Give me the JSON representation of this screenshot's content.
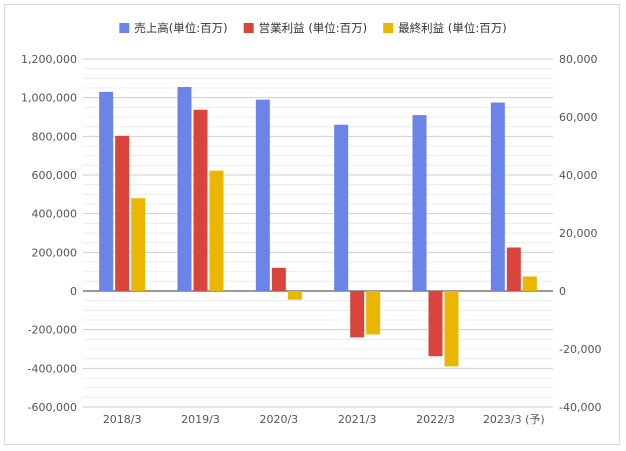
{
  "chart_data": {
    "type": "bar",
    "categories": [
      "2018/3",
      "2019/3",
      "2020/3",
      "2021/3",
      "2022/3",
      "2023/3 (予)"
    ],
    "series": [
      {
        "name": "売上高(単位:百万)",
        "axis": "left",
        "color": "#6b84e8",
        "values": [
          1030000,
          1055000,
          990000,
          860000,
          910000,
          975000
        ]
      },
      {
        "name": "営業利益 (単位:百万)",
        "axis": "right",
        "color": "#d9453d",
        "values": [
          53500,
          62500,
          8000,
          -16000,
          -22500,
          15000
        ]
      },
      {
        "name": "最終利益 (単位:百万)",
        "axis": "right",
        "color": "#e9b600",
        "values": [
          32000,
          41500,
          -3000,
          -15000,
          -26000,
          5000
        ]
      }
    ],
    "y_left": {
      "min": -600000,
      "max": 1200000,
      "ticks": [
        "1,200,000",
        "1,000,000",
        "800,000",
        "600,000",
        "400,000",
        "200,000",
        "0",
        "-200,000",
        "-400,000",
        "-600,000"
      ]
    },
    "y_right": {
      "min": -40000,
      "max": 80000,
      "ticks": [
        "80,000",
        "60,000",
        "40,000",
        "20,000",
        "0",
        "-20,000",
        "-40,000"
      ]
    },
    "grid": true,
    "legend": "top-center"
  }
}
